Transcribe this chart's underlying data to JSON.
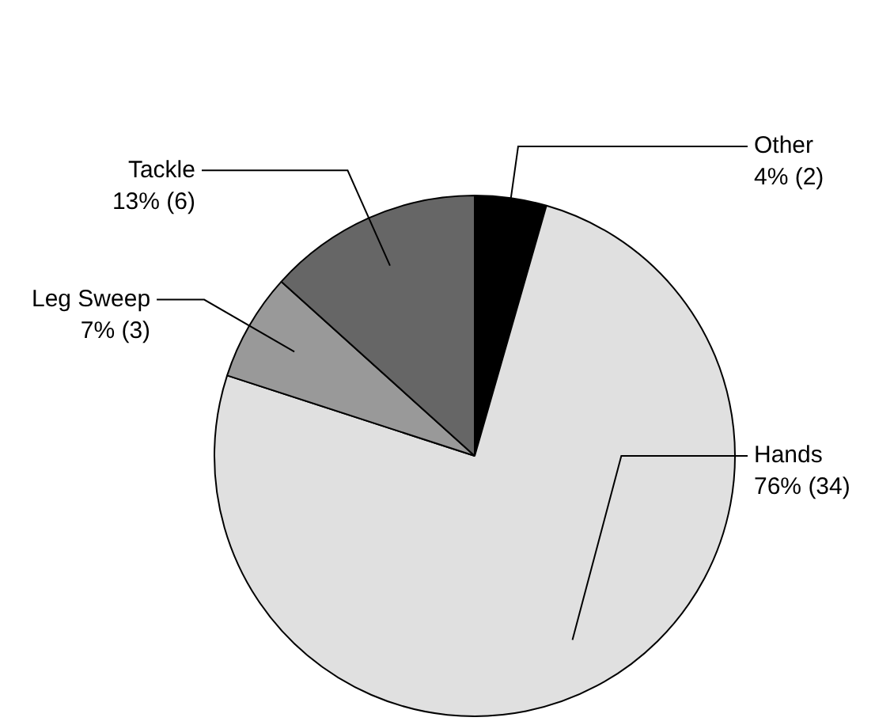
{
  "chart_data": {
    "type": "pie",
    "categories": [
      "Other",
      "Hands",
      "Leg Sweep",
      "Tackle"
    ],
    "values": [
      2,
      34,
      3,
      6
    ],
    "colors": [
      "#000000",
      "#e0e0e0",
      "#999999",
      "#666666"
    ],
    "value_labels": [
      "4% (2)",
      "76% (34)",
      "7% (3)",
      "13% (6)"
    ],
    "legend": false
  }
}
